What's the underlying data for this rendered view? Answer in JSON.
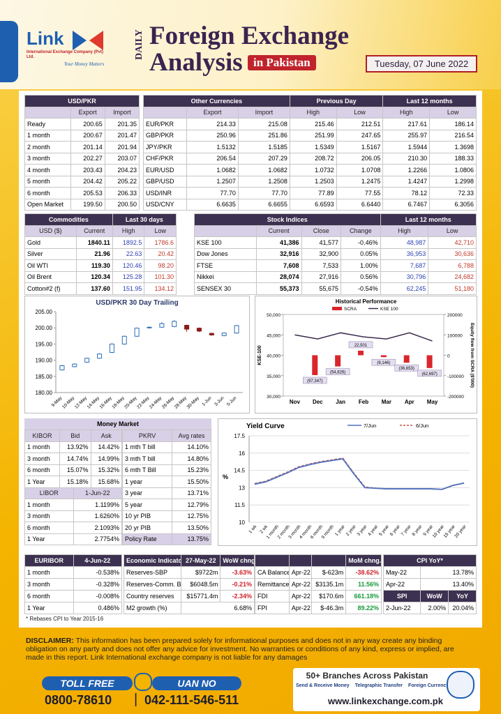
{
  "header": {
    "logo": "Link",
    "company": "International Exchange Company (Pvt) Ltd.",
    "tagline": "Your Money Matters",
    "daily": "DAILY",
    "title1": "Foreign Exchange",
    "title2": "Analysis",
    "subtitle": "in Pakistan",
    "date": "Tuesday, 07 June 2022"
  },
  "usd_pkr": {
    "head": [
      [
        "USD/PKR"
      ],
      [
        "Export",
        "Import"
      ]
    ],
    "rows": [
      [
        "Ready",
        "200.65",
        "201.35"
      ],
      [
        "1 month",
        "200.67",
        "201.47"
      ],
      [
        "2 month",
        "201.14",
        "201.94"
      ],
      [
        "3 month",
        "202.27",
        "203.07"
      ],
      [
        "4 month",
        "203.43",
        "204.23"
      ],
      [
        "5 month",
        "204.42",
        "205.22"
      ],
      [
        "6 month",
        "205.53",
        "206.33"
      ],
      [
        "Open Market",
        "199.50",
        "200.50"
      ]
    ]
  },
  "other_currencies": {
    "head": [
      [
        "Other Currencies",
        "Previous Day",
        "Last 12 months"
      ],
      [
        "Export",
        "Import",
        "High",
        "Low",
        "High",
        "Low"
      ]
    ],
    "rows": [
      [
        "EUR/PKR",
        "214.33",
        "215.08",
        "215.46",
        "212.51",
        "217.61",
        "186.14"
      ],
      [
        "GBP/PKR",
        "250.96",
        "251.86",
        "251.99",
        "247.65",
        "255.97",
        "216.54"
      ],
      [
        "JPY/PKR",
        "1.5132",
        "1.5185",
        "1.5349",
        "1.5167",
        "1.5944",
        "1.3698"
      ],
      [
        "CHF/PKR",
        "206.54",
        "207.29",
        "208.72",
        "206.05",
        "210.30",
        "188.33"
      ],
      [
        "EUR/USD",
        "1.0682",
        "1.0682",
        "1.0732",
        "1.0708",
        "1.2266",
        "1.0806"
      ],
      [
        "GBP/USD",
        "1.2507",
        "1.2508",
        "1.2503",
        "1.2475",
        "1.4247",
        "1.2998"
      ],
      [
        "USD/INR",
        "77.70",
        "77.70",
        "77.89",
        "77.55",
        "78.12",
        "72.33"
      ],
      [
        "USD/CNY",
        "6.6635",
        "6.6655",
        "6.6593",
        "6.6440",
        "6.7467",
        "6.3056"
      ]
    ]
  },
  "commodities": {
    "head": [
      [
        "Commodities",
        "Last 30 days"
      ],
      [
        "USD ($)",
        "Current",
        "High",
        "Low"
      ]
    ],
    "rows": [
      [
        "Gold",
        "1840.11",
        "1892.5",
        "1786.6"
      ],
      [
        "Silver",
        "21.96",
        "22.63",
        "20.42"
      ],
      [
        "Oil WTI",
        "119.30",
        "120.46",
        "98.20"
      ],
      [
        "Oil Brent",
        "120.34",
        "125.28",
        "101.30"
      ],
      [
        "Cotton#2 (f)",
        "137.60",
        "151.95",
        "134.12"
      ]
    ]
  },
  "stock_indices": {
    "head": [
      [
        "Stock Indices",
        "Last 12 months"
      ],
      [
        "Current",
        "Close",
        "Change",
        "High",
        "Low"
      ]
    ],
    "rows": [
      [
        "KSE 100",
        "41,386",
        "41,577",
        "-0.46%",
        "48,987",
        "42,710"
      ],
      [
        "Dow Jones",
        "32,916",
        "32,900",
        "0.05%",
        "36,953",
        "30,636"
      ],
      [
        "FTSE",
        "7,608",
        "7,533",
        "1.00%",
        "7,687",
        "6,788"
      ],
      [
        "Nikkei",
        "28,074",
        "27,916",
        "0.56%",
        "30,796",
        "24,682"
      ],
      [
        "SENSEX 30",
        "55,373",
        "55,675",
        "-0.54%",
        "62,245",
        "51,180"
      ]
    ]
  },
  "money_market": {
    "title": "Money Market",
    "kibor": {
      "head": [
        [
          "KIBOR",
          "Bid",
          "Ask"
        ]
      ],
      "rows": [
        [
          "1 month",
          "13.92%",
          "14.42%"
        ],
        [
          "3 month",
          "14.74%",
          "14.99%"
        ],
        [
          "6 month",
          "15.07%",
          "15.32%"
        ],
        [
          "1 Year",
          "15.18%",
          "15.68%"
        ]
      ]
    },
    "libor": {
      "head": [
        [
          "LIBOR",
          "1-Jun-22"
        ]
      ],
      "rows": [
        [
          "1 month",
          "1.1199%"
        ],
        [
          "3 month",
          "1.6260%"
        ],
        [
          "6 month",
          "2.1093%"
        ],
        [
          "1 Year",
          "2.7754%"
        ]
      ]
    },
    "pkrv": {
      "head": [
        [
          "PKRV",
          "Avg rates"
        ]
      ],
      "rows": [
        [
          "1 mth T bill",
          "14.10%"
        ],
        [
          "3 mth T bill",
          "14.80%"
        ],
        [
          "6 mth T Bill",
          "15.23%"
        ],
        [
          "1 year",
          "15.50%"
        ],
        [
          "3 year",
          "13.71%"
        ],
        [
          "5 year",
          "12.79%"
        ],
        [
          "10 yr PIB",
          "12.75%"
        ],
        [
          "20 yr PIB",
          "13.50%"
        ],
        [
          "Policy Rate",
          "13.75%"
        ]
      ]
    }
  },
  "euribor": {
    "head": [
      [
        "EURIBOR",
        "4-Jun-22"
      ]
    ],
    "rows": [
      [
        "1 month",
        "-0.538%"
      ],
      [
        "3 month",
        "-0.328%"
      ],
      [
        "6 month",
        "-0.008%"
      ],
      [
        "1 Year",
        "0.486%"
      ]
    ]
  },
  "economic_indicators": {
    "head": [
      [
        "Economic Indicators",
        "27-May-22",
        "WoW chng.%"
      ]
    ],
    "rows": [
      [
        "Reserves-SBP",
        "$9722m",
        "-3.63%"
      ],
      [
        "Reserves-Comm. Banks",
        "$6048.5m",
        "-0.21%"
      ],
      [
        "Country reserves",
        "$15771.4m",
        "-2.34%"
      ],
      [
        "M2 growth (%)",
        "6.68%"
      ]
    ]
  },
  "mom": {
    "head": [
      [
        "MoM chng.%"
      ]
    ],
    "rows": [
      [
        "CA Balance",
        "Apr-22",
        "$-623m",
        "-38.62%"
      ],
      [
        "Remittances",
        "Apr-22",
        "$3135.1m",
        "11.56%"
      ],
      [
        "FDI",
        "Apr-22",
        "$170.6m",
        "661.18%"
      ],
      [
        "FPI",
        "Apr-22",
        "$-46.3m",
        "89.22%"
      ]
    ]
  },
  "cpi": {
    "head": [
      [
        "CPI YoY*"
      ]
    ],
    "rows": [
      [
        "May-22",
        "13.78%"
      ],
      [
        "Apr-22",
        "13.40%"
      ]
    ]
  },
  "spi": {
    "head": [
      [
        "SPI",
        "WoW",
        "YoY"
      ]
    ],
    "rows": [
      [
        "2-Jun-22",
        "2.00%",
        "20.04%"
      ]
    ]
  },
  "footnote": "* Rebases CPI to Year 2015-16",
  "disclaimer": {
    "label": "DISCLAIMER:",
    "text": "This information has been prepared solely for informational purposes and does not in any way create any binding obligation on any  party and does not offer any advice for investment. No warranties or conditions of any kind, express or implied, are made in this report. Link International exchange company is not liable for any damages"
  },
  "footer": {
    "toll_free": "TOLL FREE",
    "uan": "UAN NO",
    "toll_number": "0800-78610",
    "separator": "|",
    "uan_number": "042-111-546-511",
    "branches": "50+ Branches Across Pakistan",
    "services": [
      "Send & Receive Money",
      "Telegraphic Transfer",
      "Foreign Currency Exchange"
    ],
    "website": "www.linkexchange.com.pk"
  },
  "chart_data": [
    {
      "type": "candlestick",
      "title": "USD/PKR 30 Day Trailing",
      "categories": [
        "9-May",
        "10-May",
        "12-May",
        "14-May",
        "16-May",
        "18-May",
        "20-May",
        "22-May",
        "24-May",
        "26-May",
        "28-May",
        "30-May",
        "1-Jun",
        "3-Jun",
        "5-Jun"
      ],
      "open": [
        187.0,
        188.0,
        189.4,
        190.6,
        192.4,
        195.0,
        197.4,
        200.0,
        200.2,
        200.4,
        200.8,
        199.9,
        198.3,
        197.6,
        198.4
      ],
      "high": [
        188.6,
        189.0,
        190.8,
        192.2,
        195.2,
        197.6,
        200.1,
        200.4,
        201.8,
        202.4,
        201.0,
        200.1,
        198.5,
        198.6,
        200.9
      ],
      "low": [
        186.8,
        187.8,
        189.2,
        190.4,
        192.2,
        194.8,
        197.2,
        199.8,
        200.0,
        200.2,
        198.8,
        198.7,
        197.6,
        197.4,
        198.2
      ],
      "close": [
        188.3,
        188.8,
        190.6,
        191.9,
        195.0,
        197.4,
        199.9,
        200.2,
        201.3,
        202.0,
        199.6,
        199.0,
        197.8,
        198.4,
        200.7
      ],
      "up_color": "#2e6fb5",
      "down_color": "#8b1a1a",
      "ylim": [
        180,
        205
      ],
      "yticks": [
        {
          "value": 180,
          "label": "180.00"
        },
        {
          "value": 185,
          "label": "185.00"
        },
        {
          "value": 190,
          "label": "190.00"
        },
        {
          "value": 195,
          "label": "195.00"
        },
        {
          "value": 200,
          "label": "200.00"
        },
        {
          "value": 205,
          "label": "205.00"
        }
      ]
    },
    {
      "type": "combo",
      "title": "Historical Performance",
      "categories": [
        "Nov",
        "Dec",
        "Jan",
        "Feb",
        "Mar",
        "Apr",
        "May"
      ],
      "series": [
        {
          "name": "SCRA",
          "color": "#d9262b",
          "kind": "bar",
          "axis": "y2",
          "values": [
            null,
            -97347,
            -54826,
            22501,
            -9146,
            -36653,
            -62697
          ],
          "value_labels": [
            null,
            "(97,347)",
            "(54,826)",
            "22,501",
            "(9,146)",
            "(36,653)",
            "(62,697)"
          ]
        },
        {
          "name": "KSE 100",
          "color": "#3b2a4e",
          "kind": "line",
          "values": [
            45000,
            44000,
            45500,
            44500,
            44000,
            45500,
            43500
          ]
        }
      ],
      "y_label": "KSE-100",
      "y2_label": "Equity flow from SCRA ($'000)",
      "ylim": [
        30000,
        50000
      ],
      "yticks": [
        {
          "value": 30000,
          "label": "30,000"
        },
        {
          "value": 35000,
          "label": "35,000"
        },
        {
          "value": 40000,
          "label": "40,000"
        },
        {
          "value": 45000,
          "label": "45,000"
        },
        {
          "value": 50000,
          "label": "50,000"
        }
      ],
      "y2lim": [
        -200000,
        200000
      ],
      "y2ticks": [
        -200000,
        -100000,
        0,
        100000,
        200000
      ]
    },
    {
      "type": "line",
      "title": "Yield Curve",
      "y_label": "%",
      "grid": true,
      "categories": [
        "1 wk",
        "2 wk",
        "1 month",
        "2 month",
        "3 month",
        "4 month",
        "6 month",
        "9 month",
        "1 year",
        "2 year",
        "3 year",
        "4 year",
        "5 year",
        "6 year",
        "7 year",
        "8 year",
        "9 year",
        "10 year",
        "15 year",
        "20 year"
      ],
      "series": [
        {
          "name": "7/Jun",
          "color": "#4f72be",
          "dash": false,
          "values": [
            13.3,
            13.5,
            13.9,
            14.3,
            14.75,
            15.0,
            15.2,
            15.35,
            15.5,
            14.2,
            13.0,
            12.95,
            12.9,
            12.9,
            12.9,
            12.9,
            12.9,
            12.85,
            13.2,
            13.4
          ]
        },
        {
          "name": "6/Jun",
          "color": "#c0504d",
          "dash": true,
          "values": [
            13.35,
            13.55,
            13.95,
            14.35,
            14.8,
            15.05,
            15.25,
            15.4,
            15.55,
            14.25,
            13.05,
            12.95,
            12.9,
            12.9,
            12.9,
            12.9,
            12.9,
            12.85,
            13.2,
            13.4
          ]
        }
      ],
      "ylim": [
        10,
        17.5
      ],
      "yticks": [
        10,
        11.5,
        13,
        14.5,
        16,
        17.5
      ]
    }
  ]
}
